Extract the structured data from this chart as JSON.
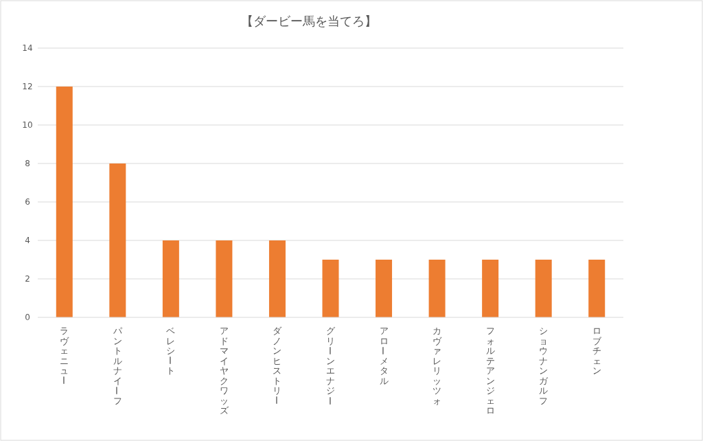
{
  "chart_data": {
    "type": "bar",
    "title": "【ダービー馬を当てろ】",
    "categories": [
      "ラヴェニュー",
      "パントルナイーフ",
      "ベレシート",
      "アドマイヤクワッズ",
      "ダノンヒストリー",
      "グリーンエナジー",
      "アローメタル",
      "カヴァレリッツォ",
      "フォルテアンジェロ",
      "ショウナンガルフ",
      "ロブチェン"
    ],
    "values": [
      12,
      8,
      4,
      4,
      4,
      3,
      3,
      3,
      3,
      3,
      3
    ],
    "color": "#ed7d31",
    "ylim": [
      0,
      14
    ],
    "yticks": [
      0,
      2,
      4,
      6,
      8,
      10,
      12,
      14
    ],
    "grid": "y"
  }
}
